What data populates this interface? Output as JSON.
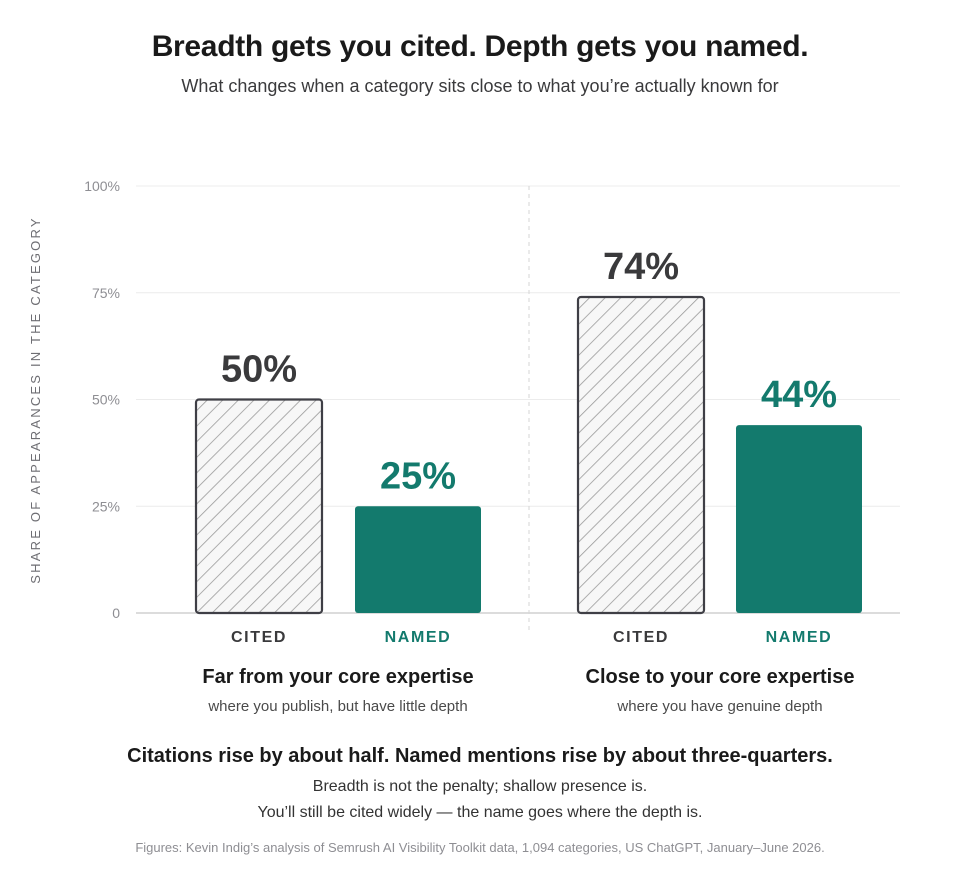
{
  "title": "Breadth gets you cited. Depth gets you named.",
  "subtitle": "What changes when a category sits close to what you’re actually known for",
  "chart_data": {
    "type": "bar",
    "ylabel": "SHARE OF APPEARANCES IN THE CATEGORY",
    "ylim": [
      0,
      100
    ],
    "yticks": [
      {
        "value": 0,
        "label": "0"
      },
      {
        "value": 25,
        "label": "25%"
      },
      {
        "value": 50,
        "label": "50%"
      },
      {
        "value": 75,
        "label": "75%"
      },
      {
        "value": 100,
        "label": "100%"
      }
    ],
    "grid": true,
    "categories": [
      "CITED",
      "NAMED"
    ],
    "groups": [
      {
        "title": "Far from your core expertise",
        "subtitle": "where you publish, but have little depth",
        "bars": [
          {
            "category": "CITED",
            "value": 50,
            "label": "50%"
          },
          {
            "category": "NAMED",
            "value": 25,
            "label": "25%"
          }
        ]
      },
      {
        "title": "Close to your core expertise",
        "subtitle": "where you have genuine depth",
        "bars": [
          {
            "category": "CITED",
            "value": 74,
            "label": "74%"
          },
          {
            "category": "NAMED",
            "value": 44,
            "label": "44%"
          }
        ]
      }
    ],
    "colors": {
      "cited_stroke": "#3f3f46",
      "cited_hatch": "#9a9a9a",
      "named_fill": "#137a6d",
      "named_text": "#137a6d",
      "cited_text": "#3a3a3c",
      "grid": "#ececec",
      "axis": "#c8c8c8"
    }
  },
  "headline": "Citations rise by about half. Named mentions rise by about three-quarters.",
  "notes": [
    "Breadth is not the penalty; shallow presence is.",
    "You’ll still be cited widely — the name goes where the depth is."
  ],
  "source": "Figures: Kevin Indig’s analysis of Semrush AI Visibility Toolkit data, 1,094 categories, US ChatGPT, January–June 2026."
}
